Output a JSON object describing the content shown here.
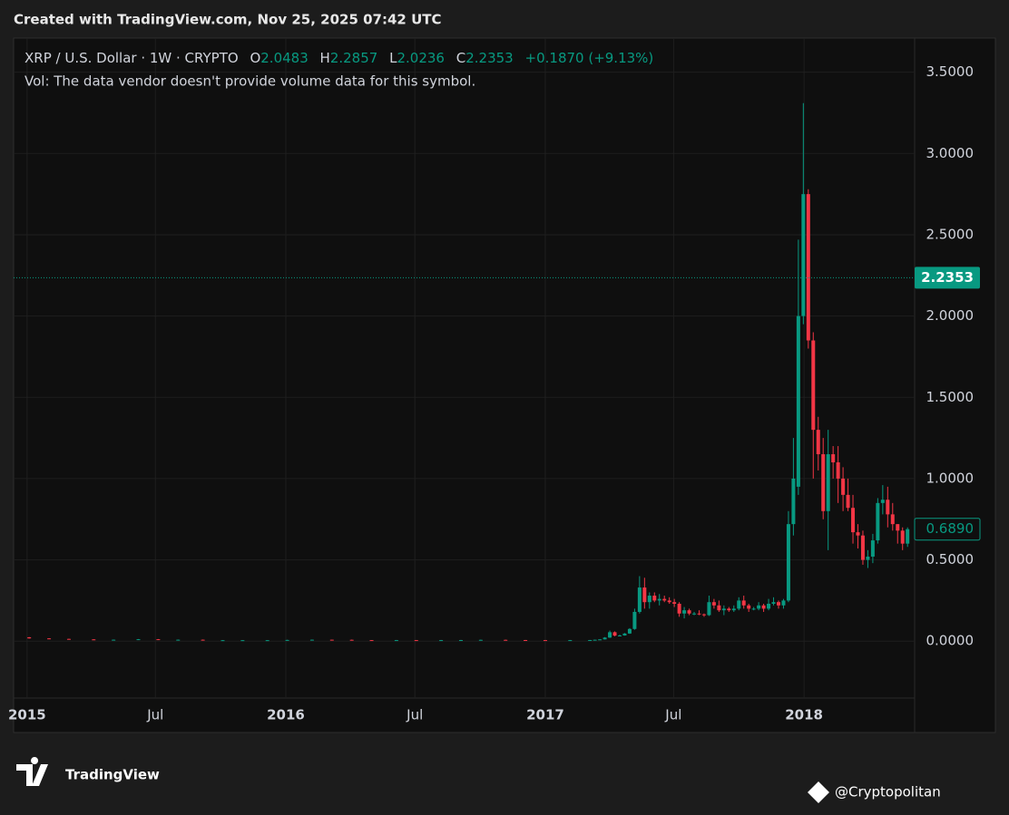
{
  "header": {
    "created": "Created with TradingView.com, Nov 25, 2025 07:42 UTC"
  },
  "footer": {
    "logo": "TradingView",
    "watermark": "@Cryptopolitan"
  },
  "chart_data": {
    "type": "candlestick",
    "legend": {
      "symbol": "XRP / U.S. Dollar · 1W · CRYPTO",
      "open_label": "O",
      "open": "2.0483",
      "high_label": "H",
      "high": "2.2857",
      "low_label": "L",
      "low": "2.0236",
      "close_label": "C",
      "close": "2.2353",
      "change": "+0.1870 (+9.13%)",
      "volume_note": "Vol: The data vendor doesn't provide volume data for this symbol."
    },
    "up_color": "#089981",
    "down_color": "#f23645",
    "grid": true,
    "ylim": [
      -0.35,
      3.71
    ],
    "yticks": [
      {
        "value": 0,
        "label": "0.0000"
      },
      {
        "value": 0.5,
        "label": "0.5000"
      },
      {
        "value": 1,
        "label": "1.0000"
      },
      {
        "value": 1.5,
        "label": "1.5000"
      },
      {
        "value": 2,
        "label": "2.0000"
      },
      {
        "value": 2.5,
        "label": "2.5000"
      },
      {
        "value": 3,
        "label": "3.0000"
      },
      {
        "value": 3.5,
        "label": "3.5000"
      }
    ],
    "xlim": [
      "2014-12-13",
      "2018-06-06"
    ],
    "xticks": [
      {
        "value": "2015-01-01",
        "label": "2015"
      },
      {
        "value": "2015-07-01",
        "label": "Jul"
      },
      {
        "value": "2016-01-01",
        "label": "2016"
      },
      {
        "value": "2016-07-01",
        "label": "Jul"
      },
      {
        "value": "2017-01-01",
        "label": "2017"
      },
      {
        "value": "2017-07-01",
        "label": "Jul"
      },
      {
        "value": "2018-01-01",
        "label": "2018"
      }
    ],
    "price_lines": [
      {
        "value": 2.2353,
        "label": "2.2353",
        "style": "filled"
      },
      {
        "value": 0.689,
        "label": "0.6890",
        "style": "outline"
      }
    ],
    "x": [
      "2015-01-04",
      "2015-02-01",
      "2015-03-01",
      "2015-04-05",
      "2015-05-03",
      "2015-06-07",
      "2015-07-05",
      "2015-08-02",
      "2015-09-06",
      "2015-10-04",
      "2015-11-01",
      "2015-12-06",
      "2016-01-03",
      "2016-02-07",
      "2016-03-06",
      "2016-04-03",
      "2016-05-01",
      "2016-06-05",
      "2016-07-03",
      "2016-08-07",
      "2016-09-04",
      "2016-10-02",
      "2016-11-06",
      "2016-12-04",
      "2017-01-01",
      "2017-02-05",
      "2017-03-05",
      "2017-03-12",
      "2017-03-19",
      "2017-03-26",
      "2017-04-02",
      "2017-04-09",
      "2017-04-16",
      "2017-04-23",
      "2017-04-30",
      "2017-05-07",
      "2017-05-14",
      "2017-05-21",
      "2017-05-28",
      "2017-06-04",
      "2017-06-11",
      "2017-06-18",
      "2017-06-25",
      "2017-07-02",
      "2017-07-09",
      "2017-07-16",
      "2017-07-23",
      "2017-07-30",
      "2017-08-06",
      "2017-08-13",
      "2017-08-20",
      "2017-08-27",
      "2017-09-03",
      "2017-09-10",
      "2017-09-17",
      "2017-09-24",
      "2017-10-01",
      "2017-10-08",
      "2017-10-15",
      "2017-10-22",
      "2017-10-29",
      "2017-11-05",
      "2017-11-12",
      "2017-11-19",
      "2017-11-26",
      "2017-12-03",
      "2017-12-10",
      "2017-12-17",
      "2017-12-24",
      "2017-12-31",
      "2018-01-07",
      "2018-01-14",
      "2018-01-21",
      "2018-01-28",
      "2018-02-04",
      "2018-02-11",
      "2018-02-18",
      "2018-02-25",
      "2018-03-04",
      "2018-03-11",
      "2018-03-18",
      "2018-03-25",
      "2018-04-01",
      "2018-04-08",
      "2018-04-15",
      "2018-04-22",
      "2018-04-29",
      "2018-05-06",
      "2018-05-13",
      "2018-05-20",
      "2018-05-27"
    ],
    "open": [
      0.024,
      0.017,
      0.014,
      0.011,
      0.008,
      0.009,
      0.012,
      0.008,
      0.009,
      0.005,
      0.006,
      0.006,
      0.006,
      0.0075,
      0.009,
      0.0085,
      0.0065,
      0.006,
      0.0065,
      0.0062,
      0.0065,
      0.0068,
      0.0082,
      0.007,
      0.0065,
      0.0063,
      0.0065,
      0.007,
      0.0088,
      0.011,
      0.022,
      0.055,
      0.034,
      0.035,
      0.047,
      0.075,
      0.18,
      0.33,
      0.24,
      0.28,
      0.25,
      0.26,
      0.25,
      0.24,
      0.23,
      0.17,
      0.19,
      0.17,
      0.17,
      0.165,
      0.16,
      0.24,
      0.22,
      0.19,
      0.2,
      0.19,
      0.2,
      0.25,
      0.22,
      0.2,
      0.2,
      0.22,
      0.2,
      0.23,
      0.24,
      0.22,
      0.25,
      0.72,
      0.95,
      2.0,
      2.75,
      1.85,
      1.3,
      1.15,
      0.8,
      1.15,
      1.1,
      1.0,
      0.9,
      0.82,
      0.67,
      0.65,
      0.5,
      0.52,
      0.62,
      0.85,
      0.87,
      0.78,
      0.72,
      0.68,
      0.6
    ],
    "high": [
      0.025,
      0.018,
      0.015,
      0.012,
      0.01,
      0.013,
      0.013,
      0.01,
      0.01,
      0.007,
      0.007,
      0.007,
      0.0085,
      0.01,
      0.0095,
      0.0095,
      0.007,
      0.0075,
      0.0072,
      0.0075,
      0.0078,
      0.0092,
      0.0092,
      0.0075,
      0.0073,
      0.0073,
      0.0075,
      0.009,
      0.012,
      0.025,
      0.065,
      0.06,
      0.04,
      0.05,
      0.08,
      0.2,
      0.4,
      0.39,
      0.3,
      0.3,
      0.29,
      0.28,
      0.27,
      0.26,
      0.24,
      0.21,
      0.2,
      0.18,
      0.19,
      0.17,
      0.28,
      0.26,
      0.25,
      0.22,
      0.21,
      0.22,
      0.27,
      0.28,
      0.23,
      0.21,
      0.24,
      0.23,
      0.26,
      0.27,
      0.25,
      0.26,
      0.8,
      1.25,
      2.47,
      3.31,
      2.78,
      1.9,
      1.38,
      1.25,
      1.3,
      1.2,
      1.2,
      1.07,
      1.0,
      0.9,
      0.72,
      0.68,
      0.56,
      0.66,
      0.88,
      0.96,
      0.95,
      0.85,
      0.72,
      0.7,
      0.7
    ],
    "low": [
      0.016,
      0.013,
      0.01,
      0.007,
      0.007,
      0.008,
      0.007,
      0.007,
      0.004,
      0.0045,
      0.005,
      0.005,
      0.0055,
      0.007,
      0.008,
      0.006,
      0.0055,
      0.0055,
      0.0058,
      0.006,
      0.006,
      0.0065,
      0.0065,
      0.006,
      0.006,
      0.006,
      0.006,
      0.0068,
      0.0085,
      0.01,
      0.02,
      0.03,
      0.03,
      0.034,
      0.045,
      0.07,
      0.17,
      0.2,
      0.2,
      0.24,
      0.22,
      0.24,
      0.23,
      0.21,
      0.15,
      0.14,
      0.16,
      0.16,
      0.16,
      0.15,
      0.155,
      0.2,
      0.18,
      0.16,
      0.18,
      0.18,
      0.19,
      0.2,
      0.18,
      0.19,
      0.19,
      0.18,
      0.19,
      0.22,
      0.2,
      0.2,
      0.24,
      0.65,
      0.9,
      1.95,
      1.8,
      1.0,
      1.05,
      0.75,
      0.56,
      1.0,
      0.85,
      0.8,
      0.8,
      0.6,
      0.57,
      0.47,
      0.45,
      0.48,
      0.6,
      0.78,
      0.7,
      0.68,
      0.6,
      0.56,
      0.58
    ],
    "close": [
      0.017,
      0.014,
      0.011,
      0.008,
      0.009,
      0.012,
      0.008,
      0.009,
      0.005,
      0.006,
      0.006,
      0.006,
      0.0075,
      0.009,
      0.0085,
      0.0065,
      0.006,
      0.0065,
      0.0062,
      0.0065,
      0.0068,
      0.0082,
      0.007,
      0.0065,
      0.0063,
      0.0065,
      0.007,
      0.0088,
      0.011,
      0.022,
      0.055,
      0.034,
      0.035,
      0.047,
      0.075,
      0.18,
      0.33,
      0.24,
      0.28,
      0.25,
      0.26,
      0.25,
      0.24,
      0.23,
      0.17,
      0.19,
      0.17,
      0.17,
      0.165,
      0.16,
      0.24,
      0.22,
      0.19,
      0.2,
      0.19,
      0.2,
      0.25,
      0.22,
      0.2,
      0.2,
      0.22,
      0.2,
      0.23,
      0.24,
      0.22,
      0.25,
      0.72,
      1.0,
      2.0,
      2.75,
      1.85,
      1.3,
      1.15,
      0.8,
      1.15,
      1.1,
      1.0,
      0.9,
      0.82,
      0.67,
      0.65,
      0.5,
      0.52,
      0.62,
      0.85,
      0.87,
      0.78,
      0.72,
      0.68,
      0.6,
      0.689
    ]
  }
}
